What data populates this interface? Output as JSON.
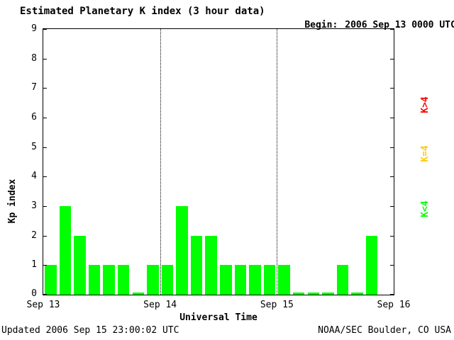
{
  "header": {
    "title": "Estimated Planetary K index (3 hour data)",
    "begin_label": "Begin:",
    "begin_value": "2006 Sep 13 0000 UTC"
  },
  "footer": {
    "updated": "Updated 2006 Sep 15 23:00:02 UTC",
    "source": "NOAA/SEC Boulder, CO USA"
  },
  "legend": [
    {
      "label": "K>4",
      "color": "#ff0000"
    },
    {
      "label": "K=4",
      "color": "#ffcc00"
    },
    {
      "label": "K<4",
      "color": "#00ff00"
    }
  ],
  "chart_data": {
    "type": "bar",
    "title": "Estimated Planetary K index (3 hour data)",
    "xlabel": "Universal Time",
    "ylabel": "Kp index",
    "ylim": [
      0,
      9
    ],
    "yticks": [
      0,
      1,
      2,
      3,
      4,
      5,
      6,
      7,
      8,
      9
    ],
    "x_day_labels": [
      "Sep 13",
      "Sep 14",
      "Sep 15",
      "Sep 16"
    ],
    "interval_hours": 3,
    "bars_per_day": 8,
    "days": 3,
    "bar_color": "#00ff00",
    "grid": "dotted-day-dividers",
    "legend_position": "right",
    "values": [
      1,
      3,
      2,
      1,
      1,
      1,
      0,
      1,
      1,
      3,
      2,
      2,
      1,
      1,
      1,
      1,
      1,
      0,
      0,
      0,
      1,
      0,
      2
    ]
  }
}
